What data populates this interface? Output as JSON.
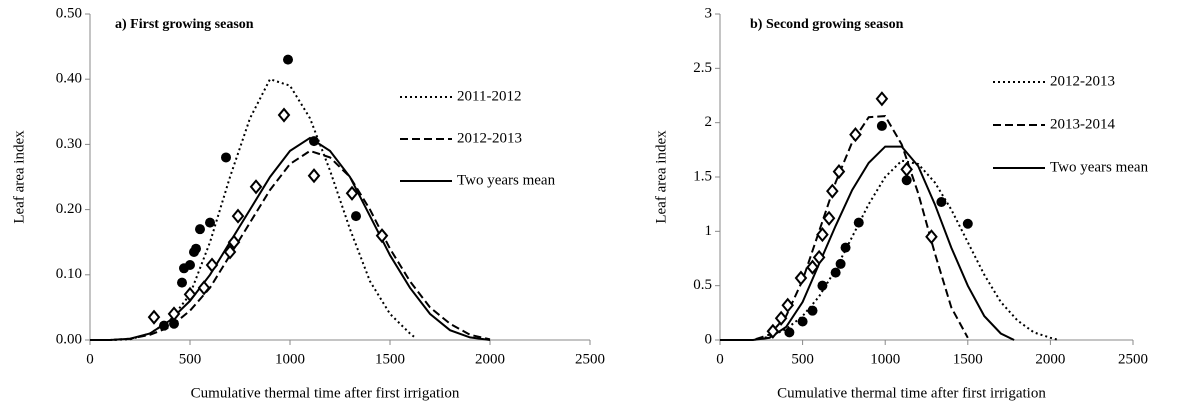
{
  "chart_data": [
    {
      "type": "line",
      "title": "a) First growing season",
      "x_label": "Cumulative thermal time after first irrigation",
      "y_label": "Leaf area index",
      "xlim": [
        0,
        2500
      ],
      "xticks": [
        0,
        500,
        1000,
        1500,
        2000,
        2500
      ],
      "ylim": [
        0,
        0.5
      ],
      "yticks": [
        {
          "value": 0,
          "label": "0.00"
        },
        {
          "value": 0.1,
          "label": "0.10"
        },
        {
          "value": 0.2,
          "label": "0.20"
        },
        {
          "value": 0.3,
          "label": "0.30"
        },
        {
          "value": 0.4,
          "label": "0.40"
        },
        {
          "value": 0.5,
          "label": "0.50"
        }
      ],
      "series": [
        {
          "name": "2011-2012",
          "color": "#000000",
          "dash": "dotted",
          "x": [
            0,
            100,
            200,
            300,
            400,
            500,
            600,
            700,
            800,
            900,
            1000,
            1100,
            1200,
            1300,
            1400,
            1500,
            1600,
            1620
          ],
          "values": [
            0,
            0,
            0.001,
            0.01,
            0.03,
            0.07,
            0.15,
            0.25,
            0.34,
            0.4,
            0.39,
            0.34,
            0.26,
            0.17,
            0.09,
            0.04,
            0.01,
            0.005
          ]
        },
        {
          "name": "2012-2013",
          "color": "#000000",
          "dash": "dashed",
          "x": [
            0,
            100,
            200,
            300,
            400,
            500,
            600,
            700,
            800,
            900,
            1000,
            1100,
            1200,
            1300,
            1400,
            1500,
            1600,
            1700,
            1800,
            1900,
            2000
          ],
          "values": [
            0,
            0,
            0.002,
            0.008,
            0.02,
            0.045,
            0.08,
            0.13,
            0.18,
            0.23,
            0.27,
            0.29,
            0.28,
            0.25,
            0.2,
            0.14,
            0.09,
            0.05,
            0.025,
            0.008,
            0.001
          ]
        },
        {
          "name": "Two years mean",
          "color": "#000000",
          "dash": "solid",
          "x": [
            0,
            100,
            200,
            300,
            400,
            500,
            600,
            700,
            800,
            900,
            1000,
            1100,
            1200,
            1300,
            1400,
            1500,
            1600,
            1700,
            1800,
            1900,
            2000
          ],
          "values": [
            0,
            0,
            0.002,
            0.01,
            0.03,
            0.06,
            0.1,
            0.15,
            0.2,
            0.25,
            0.29,
            0.31,
            0.29,
            0.25,
            0.19,
            0.13,
            0.08,
            0.04,
            0.015,
            0.004,
            0
          ]
        }
      ],
      "points": [
        {
          "marker": "circle",
          "color": "#000000",
          "x": [
            370,
            420,
            460,
            470,
            500,
            520,
            530,
            550,
            600,
            680,
            990,
            1120,
            1330
          ],
          "values": [
            0.022,
            0.025,
            0.088,
            0.11,
            0.115,
            0.135,
            0.14,
            0.17,
            0.18,
            0.28,
            0.43,
            0.305,
            0.19
          ]
        },
        {
          "marker": "diamond",
          "color": "#000000",
          "x": [
            320,
            420,
            500,
            570,
            610,
            700,
            720,
            740,
            830,
            970,
            1120,
            1310,
            1460
          ],
          "values": [
            0.035,
            0.04,
            0.07,
            0.08,
            0.115,
            0.135,
            0.15,
            0.19,
            0.235,
            0.345,
            0.252,
            0.225,
            0.16
          ]
        }
      ]
    },
    {
      "type": "line",
      "title": "b) Second growing season",
      "x_label": "Cumulative thermal time after first irrigation",
      "y_label": "Leaf area index",
      "xlim": [
        0,
        2500
      ],
      "xticks": [
        0,
        500,
        1000,
        1500,
        2000,
        2500
      ],
      "ylim": [
        0,
        3
      ],
      "yticks": [
        0,
        0.5,
        1,
        1.5,
        2,
        2.5,
        3
      ],
      "series": [
        {
          "name": "2012-2013",
          "color": "#000000",
          "dash": "dotted",
          "x": [
            0,
            200,
            300,
            400,
            500,
            600,
            700,
            800,
            900,
            1000,
            1100,
            1200,
            1300,
            1400,
            1500,
            1600,
            1700,
            1800,
            1900,
            2000,
            2050
          ],
          "values": [
            0,
            0,
            0.03,
            0.1,
            0.22,
            0.4,
            0.65,
            0.95,
            1.25,
            1.5,
            1.65,
            1.62,
            1.45,
            1.2,
            0.9,
            0.6,
            0.35,
            0.18,
            0.07,
            0.02,
            0
          ]
        },
        {
          "name": "2013-2014",
          "color": "#000000",
          "dash": "dashed",
          "x": [
            0,
            200,
            300,
            400,
            500,
            600,
            700,
            800,
            900,
            1000,
            1100,
            1200,
            1300,
            1400,
            1500
          ],
          "values": [
            0,
            0,
            0.05,
            0.22,
            0.55,
            1.0,
            1.45,
            1.82,
            2.05,
            2.06,
            1.8,
            1.35,
            0.8,
            0.3,
            0.02
          ]
        },
        {
          "name": "Two years mean",
          "color": "#000000",
          "dash": "solid",
          "x": [
            0,
            200,
            300,
            400,
            500,
            600,
            700,
            800,
            900,
            1000,
            1100,
            1200,
            1300,
            1400,
            1500,
            1600,
            1700,
            1780
          ],
          "values": [
            0,
            0,
            0.02,
            0.12,
            0.35,
            0.7,
            1.05,
            1.38,
            1.63,
            1.78,
            1.78,
            1.6,
            1.25,
            0.85,
            0.5,
            0.22,
            0.06,
            0
          ]
        }
      ],
      "points": [
        {
          "marker": "circle",
          "color": "#000000",
          "x": [
            420,
            500,
            560,
            620,
            700,
            730,
            760,
            840,
            980,
            1130,
            1340,
            1500
          ],
          "values": [
            0.07,
            0.17,
            0.27,
            0.5,
            0.62,
            0.7,
            0.85,
            1.08,
            1.97,
            1.47,
            1.27,
            1.07
          ]
        },
        {
          "marker": "diamond",
          "color": "#000000",
          "x": [
            320,
            370,
            410,
            490,
            560,
            600,
            620,
            660,
            680,
            720,
            820,
            980,
            1130,
            1280
          ],
          "values": [
            0.08,
            0.2,
            0.32,
            0.57,
            0.67,
            0.76,
            0.97,
            1.12,
            1.37,
            1.55,
            1.89,
            2.22,
            1.57,
            0.95
          ]
        }
      ]
    }
  ]
}
